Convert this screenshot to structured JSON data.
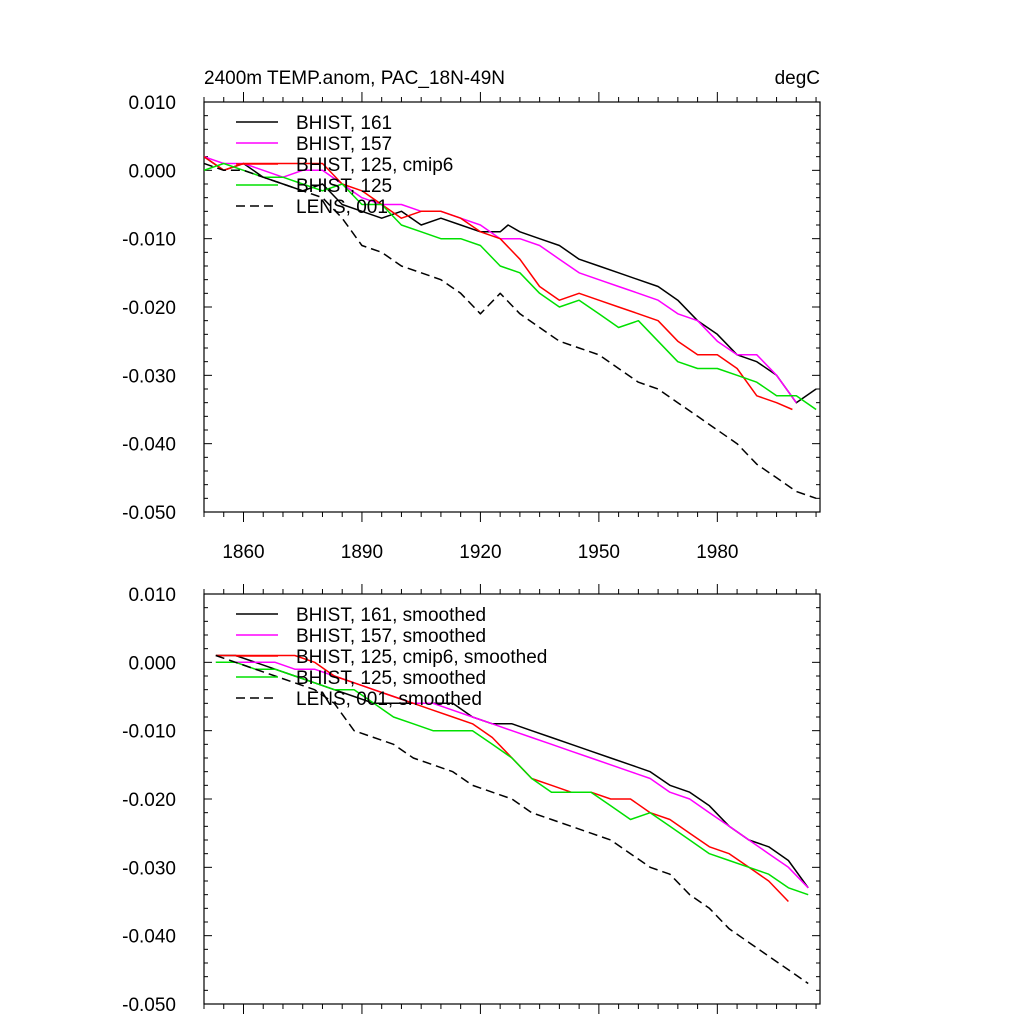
{
  "chart_data": [
    {
      "type": "line",
      "title": "2400m TEMP.anom, PAC_18N-49N",
      "units": "degC",
      "xlim": [
        1850,
        2006
      ],
      "ylim": [
        -0.05,
        0.01
      ],
      "yticks": [
        "0.010",
        "0.000",
        "-0.010",
        "-0.020",
        "-0.030",
        "-0.040",
        "-0.050"
      ],
      "xticks": [
        "1860",
        "1890",
        "1920",
        "1950",
        "1980"
      ],
      "legend_position": "top-left",
      "series": [
        {
          "name": "BHIST, 161",
          "color": "#000000",
          "dash": "solid",
          "x": [
            1850,
            1855,
            1860,
            1865,
            1870,
            1875,
            1880,
            1885,
            1890,
            1895,
            1900,
            1905,
            1910,
            1915,
            1920,
            1925,
            1927,
            1930,
            1935,
            1940,
            1945,
            1950,
            1955,
            1960,
            1965,
            1970,
            1975,
            1980,
            1985,
            1990,
            1995,
            2000,
            2005
          ],
          "y": [
            0.002,
            0.0,
            0.001,
            -0.001,
            -0.002,
            -0.003,
            -0.002,
            -0.005,
            -0.006,
            -0.007,
            -0.006,
            -0.008,
            -0.007,
            -0.008,
            -0.009,
            -0.009,
            -0.008,
            -0.009,
            -0.01,
            -0.011,
            -0.013,
            -0.014,
            -0.015,
            -0.016,
            -0.017,
            -0.019,
            -0.022,
            -0.024,
            -0.027,
            -0.028,
            -0.03,
            -0.034,
            -0.032
          ]
        },
        {
          "name": "BHIST, 157",
          "color": "#ff00ff",
          "dash": "solid",
          "x": [
            1850,
            1855,
            1860,
            1865,
            1870,
            1875,
            1880,
            1885,
            1890,
            1895,
            1900,
            1905,
            1910,
            1915,
            1920,
            1925,
            1930,
            1935,
            1940,
            1945,
            1950,
            1955,
            1960,
            1965,
            1970,
            1975,
            1980,
            1985,
            1990,
            1995,
            2000
          ],
          "y": [
            0.002,
            0.001,
            0.001,
            0.0,
            -0.001,
            0.0,
            0.0,
            -0.002,
            -0.004,
            -0.005,
            -0.005,
            -0.006,
            -0.006,
            -0.007,
            -0.008,
            -0.01,
            -0.01,
            -0.011,
            -0.013,
            -0.015,
            -0.016,
            -0.017,
            -0.018,
            -0.019,
            -0.021,
            -0.022,
            -0.025,
            -0.027,
            -0.027,
            -0.03,
            -0.034
          ]
        },
        {
          "name": "BHIST, 125, cmip6",
          "color": "#ff0000",
          "dash": "solid",
          "x": [
            1850,
            1855,
            1860,
            1865,
            1870,
            1875,
            1880,
            1885,
            1890,
            1895,
            1900,
            1905,
            1910,
            1915,
            1920,
            1925,
            1930,
            1935,
            1940,
            1945,
            1950,
            1955,
            1960,
            1965,
            1970,
            1975,
            1980,
            1985,
            1990,
            1995,
            1999
          ],
          "y": [
            0.002,
            0.0,
            0.001,
            0.001,
            0.001,
            0.001,
            0.001,
            -0.002,
            -0.003,
            -0.005,
            -0.007,
            -0.006,
            -0.006,
            -0.007,
            -0.009,
            -0.01,
            -0.013,
            -0.017,
            -0.019,
            -0.018,
            -0.019,
            -0.02,
            -0.021,
            -0.022,
            -0.025,
            -0.027,
            -0.027,
            -0.029,
            -0.033,
            -0.034,
            -0.035
          ]
        },
        {
          "name": "BHIST, 125",
          "color": "#00e000",
          "dash": "solid",
          "x": [
            1850,
            1855,
            1860,
            1865,
            1870,
            1875,
            1880,
            1885,
            1890,
            1895,
            1900,
            1905,
            1910,
            1915,
            1920,
            1925,
            1930,
            1935,
            1940,
            1945,
            1950,
            1955,
            1960,
            1965,
            1970,
            1975,
            1980,
            1985,
            1990,
            1995,
            2000,
            2005
          ],
          "y": [
            0.0,
            0.001,
            0.0,
            -0.001,
            -0.001,
            -0.002,
            -0.003,
            -0.002,
            -0.005,
            -0.005,
            -0.008,
            -0.009,
            -0.01,
            -0.01,
            -0.011,
            -0.014,
            -0.015,
            -0.018,
            -0.02,
            -0.019,
            -0.021,
            -0.023,
            -0.022,
            -0.025,
            -0.028,
            -0.029,
            -0.029,
            -0.03,
            -0.031,
            -0.033,
            -0.033,
            -0.035
          ]
        },
        {
          "name": "LENS, 001",
          "color": "#000000",
          "dash": "dashed",
          "x": [
            1850,
            1855,
            1860,
            1865,
            1870,
            1875,
            1880,
            1885,
            1890,
            1895,
            1900,
            1905,
            1910,
            1915,
            1920,
            1925,
            1930,
            1935,
            1940,
            1945,
            1950,
            1955,
            1960,
            1965,
            1970,
            1975,
            1980,
            1985,
            1990,
            1995,
            2000,
            2005
          ],
          "y": [
            0.001,
            0.0,
            0.0,
            -0.001,
            -0.002,
            -0.003,
            -0.004,
            -0.007,
            -0.011,
            -0.012,
            -0.014,
            -0.015,
            -0.016,
            -0.018,
            -0.021,
            -0.018,
            -0.021,
            -0.023,
            -0.025,
            -0.026,
            -0.027,
            -0.029,
            -0.031,
            -0.032,
            -0.034,
            -0.036,
            -0.038,
            -0.04,
            -0.043,
            -0.045,
            -0.047,
            -0.048
          ]
        }
      ]
    },
    {
      "type": "line",
      "xlim": [
        1850,
        2006
      ],
      "ylim": [
        -0.05,
        0.01
      ],
      "yticks": [
        "0.010",
        "0.000",
        "-0.010",
        "-0.020",
        "-0.030",
        "-0.040",
        "-0.050"
      ],
      "legend_position": "top-left",
      "series": [
        {
          "name": "BHIST, 161, smoothed",
          "color": "#000000",
          "dash": "solid",
          "x": [
            1853,
            1858,
            1863,
            1868,
            1873,
            1878,
            1883,
            1888,
            1893,
            1898,
            1903,
            1908,
            1913,
            1918,
            1923,
            1928,
            1933,
            1938,
            1943,
            1948,
            1953,
            1958,
            1963,
            1968,
            1973,
            1978,
            1983,
            1988,
            1993,
            1998,
            2003
          ],
          "y": [
            0.001,
            0.001,
            0.0,
            -0.001,
            -0.002,
            -0.003,
            -0.004,
            -0.005,
            -0.006,
            -0.006,
            -0.006,
            -0.006,
            -0.006,
            -0.008,
            -0.009,
            -0.009,
            -0.01,
            -0.011,
            -0.012,
            -0.013,
            -0.014,
            -0.015,
            -0.016,
            -0.018,
            -0.019,
            -0.021,
            -0.024,
            -0.026,
            -0.027,
            -0.029,
            -0.033
          ]
        },
        {
          "name": "BHIST, 157, smoothed",
          "color": "#ff00ff",
          "dash": "solid",
          "x": [
            1853,
            1858,
            1863,
            1868,
            1873,
            1878,
            1883,
            1888,
            1893,
            1898,
            1903,
            1908,
            1913,
            1918,
            1923,
            1928,
            1933,
            1938,
            1943,
            1948,
            1953,
            1958,
            1963,
            1968,
            1973,
            1978,
            1983,
            1988,
            1993,
            1998,
            2003
          ],
          "y": [
            0.0,
            0.0,
            0.0,
            0.0,
            -0.001,
            -0.001,
            -0.002,
            -0.003,
            -0.004,
            -0.005,
            -0.006,
            -0.006,
            -0.007,
            -0.008,
            -0.009,
            -0.01,
            -0.011,
            -0.012,
            -0.013,
            -0.014,
            -0.015,
            -0.016,
            -0.017,
            -0.019,
            -0.02,
            -0.022,
            -0.024,
            -0.026,
            -0.028,
            -0.03,
            -0.033
          ]
        },
        {
          "name": "BHIST, 125, cmip6, smoothed",
          "color": "#ff0000",
          "dash": "solid",
          "x": [
            1853,
            1858,
            1863,
            1868,
            1873,
            1878,
            1883,
            1888,
            1893,
            1898,
            1903,
            1908,
            1913,
            1918,
            1923,
            1928,
            1933,
            1938,
            1943,
            1948,
            1953,
            1958,
            1963,
            1968,
            1973,
            1978,
            1983,
            1988,
            1993,
            1998
          ],
          "y": [
            0.001,
            0.001,
            0.001,
            0.001,
            0.001,
            0.0,
            -0.002,
            -0.003,
            -0.004,
            -0.005,
            -0.006,
            -0.007,
            -0.008,
            -0.009,
            -0.011,
            -0.014,
            -0.017,
            -0.018,
            -0.019,
            -0.019,
            -0.02,
            -0.02,
            -0.022,
            -0.023,
            -0.025,
            -0.027,
            -0.028,
            -0.03,
            -0.032,
            -0.035
          ]
        },
        {
          "name": "BHIST, 125, smoothed",
          "color": "#00e000",
          "dash": "solid",
          "x": [
            1853,
            1858,
            1863,
            1868,
            1873,
            1878,
            1883,
            1888,
            1893,
            1898,
            1903,
            1908,
            1913,
            1918,
            1923,
            1928,
            1933,
            1938,
            1943,
            1948,
            1953,
            1958,
            1963,
            1968,
            1973,
            1978,
            1983,
            1988,
            1993,
            1998,
            2003
          ],
          "y": [
            0.0,
            0.0,
            -0.001,
            -0.001,
            -0.002,
            -0.003,
            -0.004,
            -0.004,
            -0.006,
            -0.008,
            -0.009,
            -0.01,
            -0.01,
            -0.01,
            -0.012,
            -0.014,
            -0.017,
            -0.019,
            -0.019,
            -0.019,
            -0.021,
            -0.023,
            -0.022,
            -0.024,
            -0.026,
            -0.028,
            -0.029,
            -0.03,
            -0.031,
            -0.033,
            -0.034
          ]
        },
        {
          "name": "LENS, 001, smoothed",
          "color": "#000000",
          "dash": "dashed",
          "x": [
            1853,
            1858,
            1863,
            1868,
            1873,
            1878,
            1883,
            1888,
            1893,
            1898,
            1903,
            1908,
            1913,
            1918,
            1923,
            1928,
            1933,
            1938,
            1943,
            1948,
            1953,
            1958,
            1963,
            1968,
            1973,
            1978,
            1983,
            1988,
            1993,
            1998,
            2003
          ],
          "y": [
            0.001,
            0.0,
            -0.001,
            -0.002,
            -0.003,
            -0.004,
            -0.006,
            -0.01,
            -0.011,
            -0.012,
            -0.014,
            -0.015,
            -0.016,
            -0.018,
            -0.019,
            -0.02,
            -0.022,
            -0.023,
            -0.024,
            -0.025,
            -0.026,
            -0.028,
            -0.03,
            -0.031,
            -0.034,
            -0.036,
            -0.039,
            -0.041,
            -0.043,
            -0.045,
            -0.047
          ]
        }
      ]
    }
  ]
}
